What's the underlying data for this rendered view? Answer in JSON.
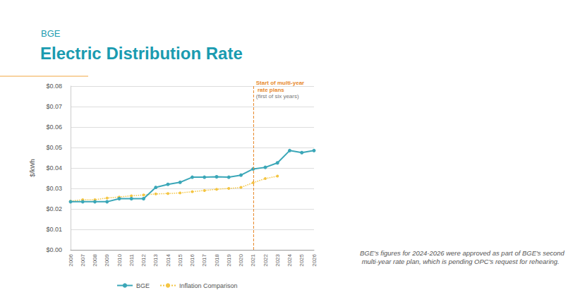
{
  "chart_data": {
    "type": "line",
    "subtitle": "BGE",
    "title": "Electric Distribution Rate",
    "y_label": "$/kWh",
    "categories": [
      "2006",
      "2007",
      "2008",
      "2009",
      "2010",
      "2011",
      "2012",
      "2013",
      "2014",
      "2015",
      "2016",
      "2017",
      "2018",
      "2019",
      "2020",
      "2021",
      "2022",
      "2023",
      "2024",
      "2025",
      "2026"
    ],
    "series": [
      {
        "name": "BGE",
        "color": "#3ba7b8",
        "marker": "circle",
        "line_style": "solid",
        "values": [
          0.0235,
          0.0235,
          0.0235,
          0.0235,
          0.025,
          0.025,
          0.025,
          0.0305,
          0.032,
          0.033,
          0.0355,
          0.0355,
          0.0357,
          0.0355,
          0.0365,
          0.0395,
          0.0403,
          0.0425,
          0.0485,
          0.0475,
          0.0485
        ]
      },
      {
        "name": "Inflation Comparison",
        "color": "#f4c542",
        "marker": "circle",
        "line_style": "dotted",
        "values": [
          0.0238,
          0.0245,
          0.0245,
          0.0253,
          0.0258,
          0.0264,
          0.0268,
          0.0273,
          0.0275,
          0.0278,
          0.0284,
          0.029,
          0.0296,
          0.03,
          0.0305,
          0.0328,
          0.0348,
          0.036,
          null,
          null,
          null
        ]
      }
    ],
    "ylim": [
      0,
      0.08
    ],
    "yticks": [
      {
        "value": 0,
        "label": "$0.00"
      },
      {
        "value": 0.01,
        "label": "$0.01"
      },
      {
        "value": 0.02,
        "label": "$0.02"
      },
      {
        "value": 0.03,
        "label": "$0.03"
      },
      {
        "value": 0.04,
        "label": "$0.04"
      },
      {
        "value": 0.05,
        "label": "$0.05"
      },
      {
        "value": 0.06,
        "label": "$0.06"
      },
      {
        "value": 0.07,
        "label": "$0.07"
      },
      {
        "value": 0.08,
        "label": "$0.08"
      }
    ],
    "grid": true,
    "legend": "bottom",
    "annotations": [
      {
        "x": "2021",
        "text": "Start of multi-year rate plans",
        "subtext": "(first of six years)",
        "color": "#e8892b"
      }
    ],
    "note": "BGE's figures for 2024-2026 were approved as part of BGE's second multi-year rate plan, which is pending OPC's request for rehearing."
  }
}
